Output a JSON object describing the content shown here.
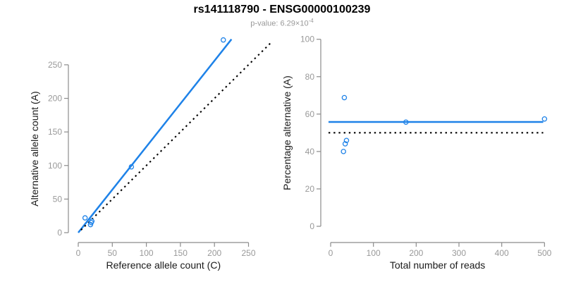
{
  "header": {
    "title": "rs141118790 - ENSG00000100239",
    "subtitle_prefix": "p-value: 6.29×10",
    "subtitle_exponent": "-4"
  },
  "colors": {
    "blue": "#1E82E8",
    "line_black": "#000000",
    "axis": "#8C8C8C",
    "tick_label": "#999999",
    "axis_title": "#1A1A1A",
    "title": "#000000",
    "subtitle": "#999999",
    "background": "#FFFFFF"
  },
  "chart_data": [
    {
      "type": "scatter",
      "panel": "left",
      "xlabel": "Reference allele count (C)",
      "ylabel": "Alternative allele count (A)",
      "xlim": [
        0,
        250
      ],
      "ylim": [
        0,
        290
      ],
      "xticks": [
        0,
        50,
        100,
        150,
        200,
        250
      ],
      "yticks": [
        0,
        50,
        100,
        150,
        200,
        250
      ],
      "grid": false,
      "points": [
        [
          10,
          22
        ],
        [
          19,
          15
        ],
        [
          20,
          17
        ],
        [
          18,
          12
        ],
        [
          78,
          98
        ],
        [
          213,
          287
        ]
      ],
      "lines": [
        {
          "name": "fit-line",
          "style": "solid",
          "color": "blue",
          "x1": 0,
          "y1": 0,
          "x2": 225,
          "y2": 288
        },
        {
          "name": "identity-line",
          "style": "dotted",
          "color": "black",
          "x1": 4,
          "y1": 4,
          "x2": 285,
          "y2": 285
        }
      ]
    },
    {
      "type": "scatter",
      "panel": "right",
      "xlabel": "Total number of reads",
      "ylabel": "Percentage alternative (A)",
      "xlim": [
        0,
        500
      ],
      "ylim": [
        0,
        100
      ],
      "xticks": [
        0,
        100,
        200,
        300,
        400,
        500
      ],
      "yticks": [
        0,
        20,
        40,
        60,
        80,
        100
      ],
      "grid": false,
      "points": [
        [
          32,
          68.8
        ],
        [
          34,
          44.1
        ],
        [
          37,
          45.9
        ],
        [
          30,
          40
        ],
        [
          176,
          55.7
        ],
        [
          500,
          57.4
        ]
      ],
      "lines": [
        {
          "name": "fit-line",
          "style": "solid",
          "color": "blue",
          "x1": -5,
          "y1": 55.8,
          "x2": 497,
          "y2": 55.8
        },
        {
          "name": "null-line",
          "style": "dotted",
          "color": "black",
          "x1": -5,
          "y1": 50,
          "x2": 497,
          "y2": 50
        }
      ]
    }
  ]
}
